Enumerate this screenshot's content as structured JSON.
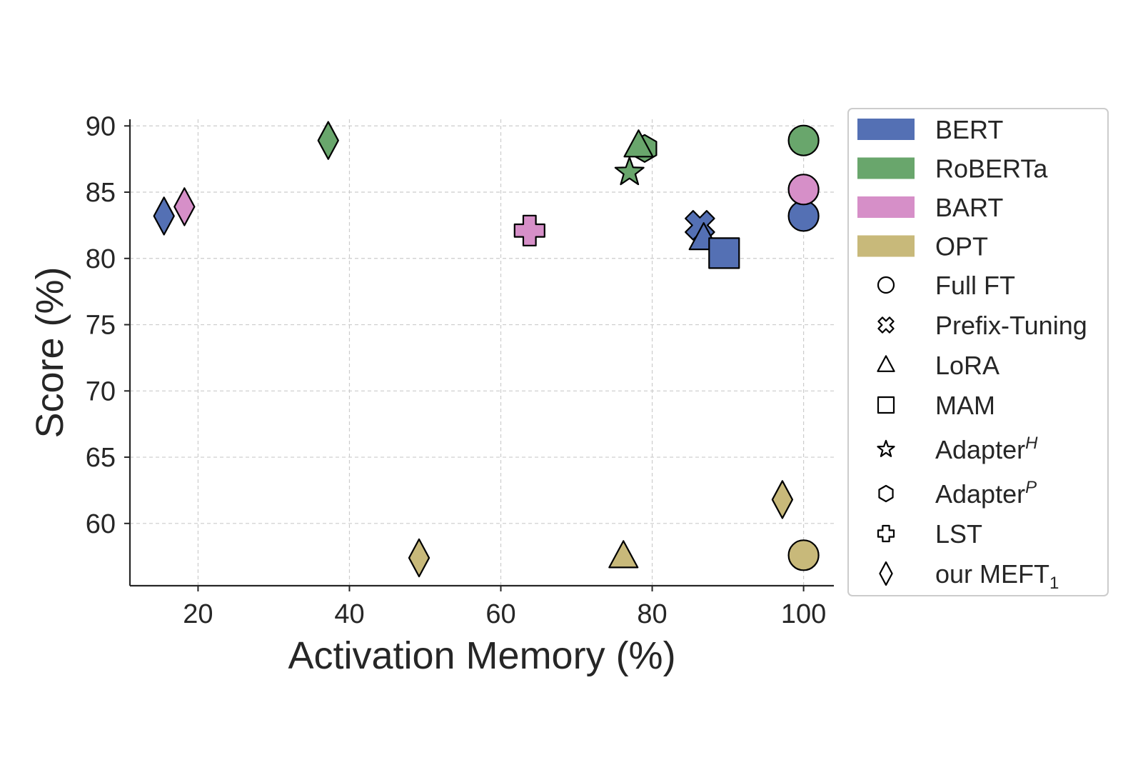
{
  "chart_data": {
    "type": "scatter",
    "title": "",
    "xlabel": "Activation Memory (%)",
    "ylabel": "Score (%)",
    "xlim": [
      11,
      104
    ],
    "ylim": [
      55.3,
      90.5
    ],
    "xticks": [
      20,
      40,
      60,
      80,
      100
    ],
    "yticks": [
      60,
      65,
      70,
      75,
      80,
      85,
      90
    ],
    "grid": true,
    "legend_position": "outside-right",
    "model_colors": {
      "BERT": "#5470b4",
      "RoBERTa": "#69a66c",
      "BART": "#d68fc8",
      "OPT": "#c8b97a"
    },
    "models": [
      "BERT",
      "RoBERTa",
      "BART",
      "OPT"
    ],
    "methods": [
      {
        "label": "Full FT",
        "marker": "circle"
      },
      {
        "label": "Prefix-Tuning",
        "marker": "x"
      },
      {
        "label": "LoRA",
        "marker": "triangle"
      },
      {
        "label": "MAM",
        "marker": "square"
      },
      {
        "label": "Adapter",
        "sup": "H",
        "marker": "star"
      },
      {
        "label": "Adapter",
        "sup": "P",
        "marker": "hexagon"
      },
      {
        "label": "LST",
        "marker": "plus"
      },
      {
        "label": "our MEFT",
        "sub": "1",
        "marker": "diamond"
      }
    ],
    "points": [
      {
        "model": "BERT",
        "method": "Full FT",
        "marker": "circle",
        "x": 100,
        "y": 83.2
      },
      {
        "model": "BERT",
        "method": "Prefix-Tuning",
        "marker": "x",
        "x": 86.3,
        "y": 82.5
      },
      {
        "model": "BERT",
        "method": "LoRA",
        "marker": "triangle",
        "x": 86.8,
        "y": 81.5
      },
      {
        "model": "BERT",
        "method": "MAM",
        "marker": "square",
        "x": 89.5,
        "y": 80.4
      },
      {
        "model": "BERT",
        "method": "our MEFT1",
        "marker": "diamond",
        "x": 15.5,
        "y": 83.2
      },
      {
        "model": "RoBERTa",
        "method": "Full FT",
        "marker": "circle",
        "x": 100,
        "y": 88.9
      },
      {
        "model": "RoBERTa",
        "method": "AdapterP",
        "marker": "hexagon",
        "x": 79,
        "y": 88.3
      },
      {
        "model": "RoBERTa",
        "method": "LoRA",
        "marker": "triangle",
        "x": 78.2,
        "y": 88.5
      },
      {
        "model": "RoBERTa",
        "method": "AdapterH",
        "marker": "star",
        "x": 77,
        "y": 86.5
      },
      {
        "model": "RoBERTa",
        "method": "our MEFT1",
        "marker": "diamond",
        "x": 37.2,
        "y": 88.9
      },
      {
        "model": "BART",
        "method": "Full FT",
        "marker": "circle",
        "x": 100,
        "y": 85.2
      },
      {
        "model": "BART",
        "method": "LST",
        "marker": "plus",
        "x": 63.8,
        "y": 82.1
      },
      {
        "model": "BART",
        "method": "our MEFT1",
        "marker": "diamond",
        "x": 18.2,
        "y": 83.9
      },
      {
        "model": "OPT",
        "method": "Full FT",
        "marker": "circle",
        "x": 100,
        "y": 57.6
      },
      {
        "model": "OPT",
        "method": "our MEFT1",
        "marker": "diamond",
        "x": 97.2,
        "y": 61.8
      },
      {
        "model": "OPT",
        "method": "LoRA",
        "marker": "triangle",
        "x": 76.2,
        "y": 57.5
      },
      {
        "model": "OPT",
        "method": "our MEFT1",
        "marker": "diamond",
        "x": 49.2,
        "y": 57.4
      }
    ]
  }
}
